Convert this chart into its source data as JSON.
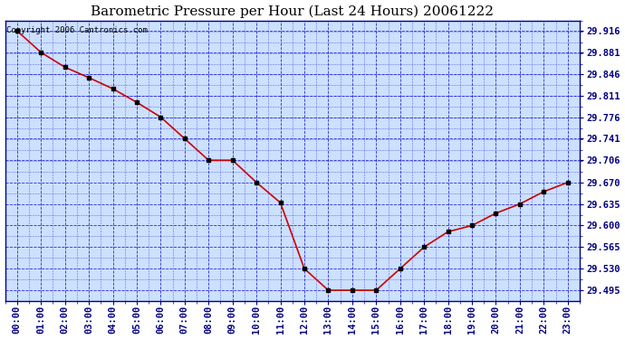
{
  "title": "Barometric Pressure per Hour (Last 24 Hours) 20061222",
  "copyright": "Copyright 2006 Cantronics.com",
  "x_labels": [
    "00:00",
    "01:00",
    "02:00",
    "03:00",
    "04:00",
    "05:00",
    "06:00",
    "07:00",
    "08:00",
    "09:00",
    "10:00",
    "11:00",
    "12:00",
    "13:00",
    "14:00",
    "15:00",
    "16:00",
    "17:00",
    "18:00",
    "19:00",
    "20:00",
    "21:00",
    "22:00",
    "23:00"
  ],
  "y_values": [
    29.916,
    29.881,
    29.857,
    29.84,
    29.822,
    29.8,
    29.776,
    29.741,
    29.706,
    29.706,
    29.67,
    29.637,
    29.53,
    29.495,
    29.495,
    29.495,
    29.53,
    29.565,
    29.59,
    29.6,
    29.62,
    29.635,
    29.655,
    29.67
  ],
  "y_ticks": [
    29.495,
    29.53,
    29.565,
    29.6,
    29.635,
    29.67,
    29.706,
    29.741,
    29.776,
    29.811,
    29.846,
    29.881,
    29.916
  ],
  "ylim_min": 29.478,
  "ylim_max": 29.933,
  "line_color": "#cc0000",
  "marker_color": "#000000",
  "bg_color": "#ffffff",
  "plot_bg": "#cce0ff",
  "grid_color": "#0000cc",
  "title_fontsize": 11,
  "copyright_fontsize": 6.5,
  "tick_fontsize": 7.5,
  "axis_label_color": "#000080"
}
